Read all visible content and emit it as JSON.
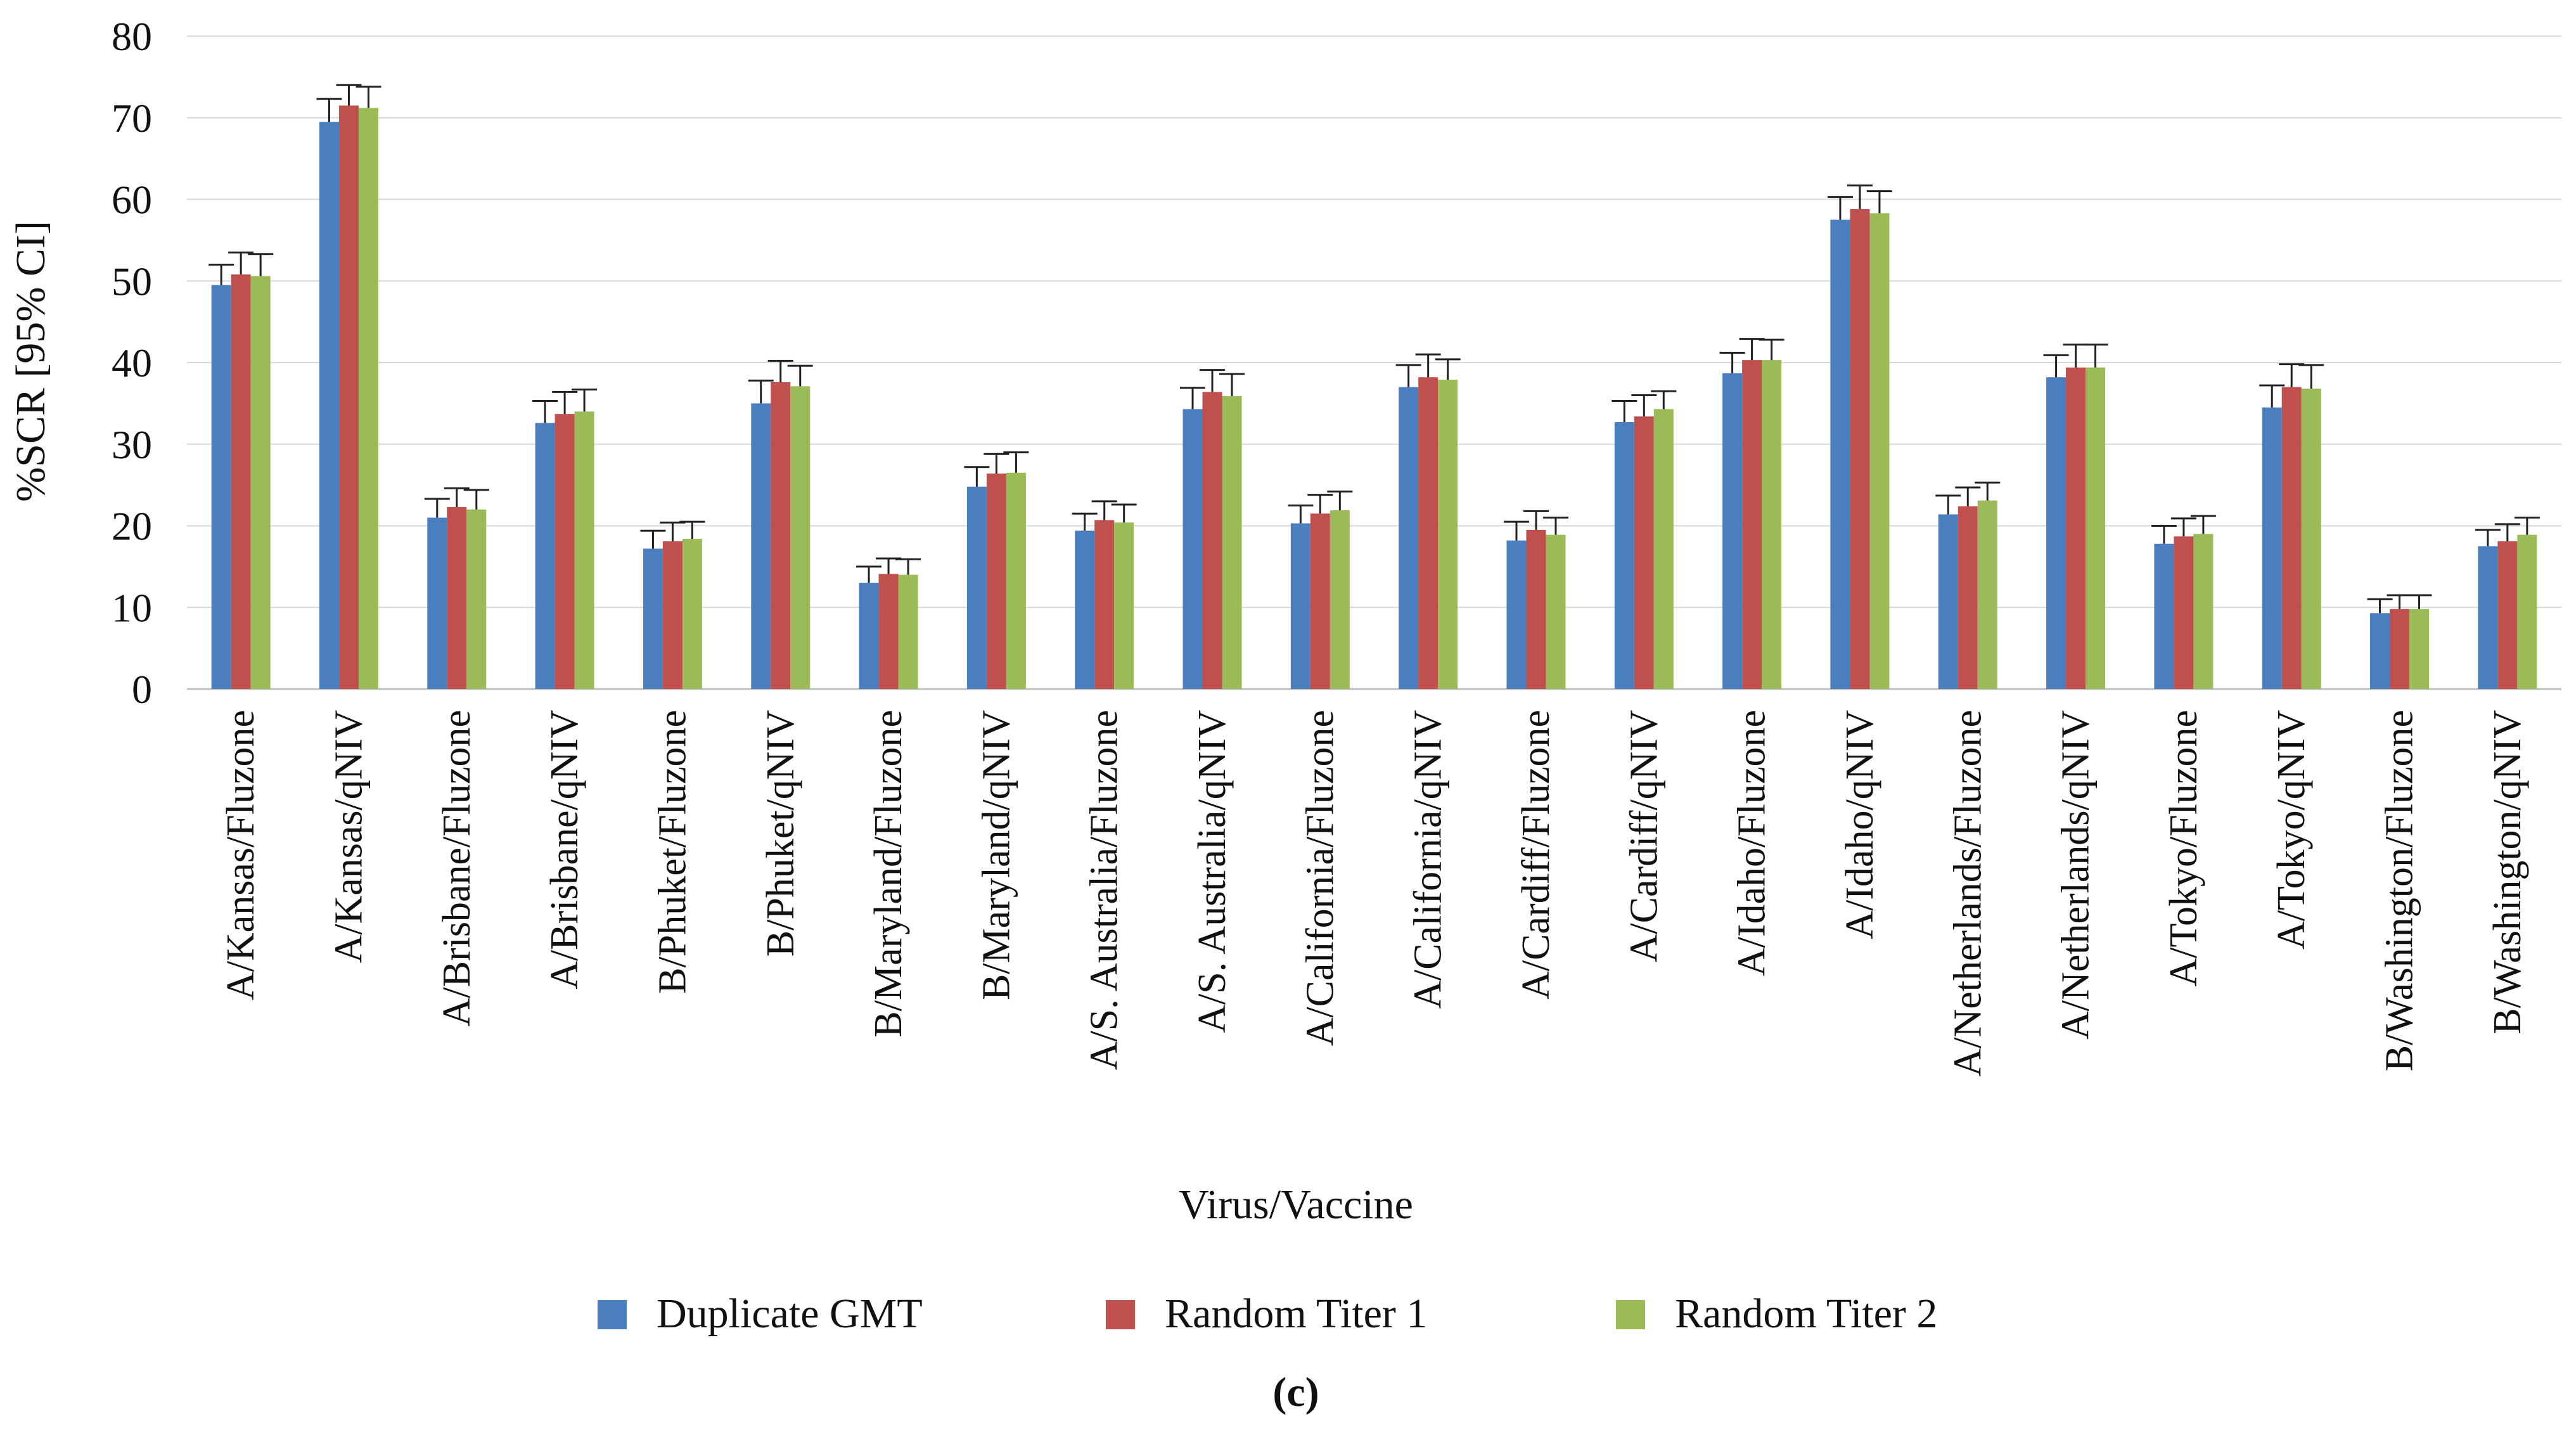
{
  "chart_data": {
    "type": "bar",
    "title": "",
    "xlabel": "Virus/Vaccine",
    "ylabel": "%SCR [95% CI]",
    "panel_label": "(c)",
    "ylim": [
      0,
      80
    ],
    "yticks": [
      0,
      10,
      20,
      30,
      40,
      50,
      60,
      70,
      80
    ],
    "grid": true,
    "legend_position": "bottom",
    "categories": [
      "A/Kansas/Fluzone",
      "A/Kansas/qNIV",
      "A/Brisbane/Fluzone",
      "A/Brisbane/qNIV",
      "B/Phuket/Fluzone",
      "B/Phuket/qNIV",
      "B/Maryland/Fluzone",
      "B/Maryland/qNIV",
      "A/S. Australia/Fluzone",
      "A/S. Australia/qNIV",
      "A/California/Fluzone",
      "A/California/qNIV",
      "A/Cardiff/Fluzone",
      "A/Cardiff/qNIV",
      "A/Idaho/Fluzone",
      "A/Idaho/qNIV",
      "A/Netherlands/Fluzone",
      "A/Netherlands/qNIV",
      "A/Tokyo/Fluzone",
      "A/Tokyo/qNIV",
      "B/Washington/Fluzone",
      "B/Washington/qNIV"
    ],
    "series": [
      {
        "name": "Duplicate GMT",
        "color": "#4a7ebf",
        "values": [
          49.5,
          69.5,
          21,
          32.6,
          17.2,
          35,
          13,
          24.8,
          19.4,
          34.3,
          20.3,
          37,
          18.2,
          32.7,
          38.7,
          57.5,
          21.4,
          38.2,
          17.8,
          34.5,
          9.3,
          17.5
        ],
        "ci_upper": [
          52,
          72.3,
          23.3,
          35.3,
          19.4,
          37.8,
          15,
          27.2,
          21.5,
          36.9,
          22.5,
          39.7,
          20.5,
          35.3,
          41.2,
          60.3,
          23.7,
          40.9,
          20,
          37.2,
          11,
          19.5
        ]
      },
      {
        "name": "Random Titer 1",
        "color": "#c0504d",
        "values": [
          50.8,
          71.5,
          22.3,
          33.7,
          18.1,
          37.6,
          14.1,
          26.4,
          20.7,
          36.4,
          21.5,
          38.2,
          19.5,
          33.4,
          40.3,
          58.8,
          22.4,
          39.4,
          18.7,
          37,
          9.8,
          18.1
        ],
        "ci_upper": [
          53.5,
          74,
          24.6,
          36.4,
          20.4,
          40.2,
          16,
          28.8,
          23,
          39.1,
          23.8,
          41,
          21.8,
          36,
          42.9,
          61.7,
          24.7,
          42.2,
          20.9,
          39.8,
          11.5,
          20.2
        ]
      },
      {
        "name": "Random Titer 2",
        "color": "#9bbb59",
        "values": [
          50.6,
          71.2,
          22,
          34,
          18.4,
          37.1,
          14,
          26.5,
          20.4,
          35.9,
          21.9,
          37.9,
          18.9,
          34.3,
          40.3,
          58.3,
          23.1,
          39.4,
          19,
          36.8,
          9.8,
          18.9
        ],
        "ci_upper": [
          53.3,
          73.8,
          24.4,
          36.7,
          20.5,
          39.6,
          15.9,
          29,
          22.6,
          38.6,
          24.2,
          40.4,
          21,
          36.5,
          42.8,
          61,
          25.3,
          42.2,
          21.2,
          39.7,
          11.5,
          21
        ]
      }
    ]
  }
}
